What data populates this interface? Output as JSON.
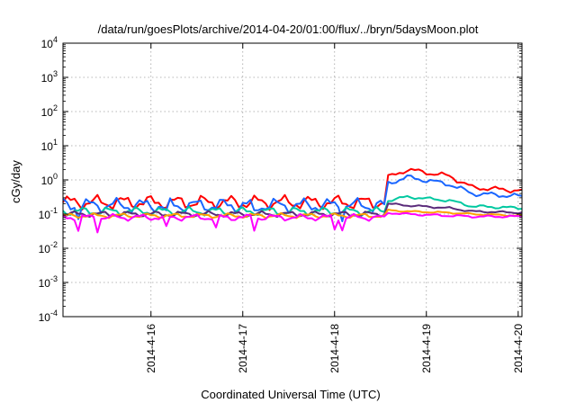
{
  "chart_data": {
    "type": "line",
    "title": "/data/run/goesPlots/archive/2014-04-20/01:00/flux/../bryn/5daysMoon.plot",
    "xlabel": "Coordinated Universal Time (UTC)",
    "ylabel": "cGy/day",
    "y_scale": "log",
    "ylim": [
      0.0001,
      10000
    ],
    "y_ticks": [
      {
        "base": "10",
        "exp": "-4"
      },
      {
        "base": "10",
        "exp": "-3"
      },
      {
        "base": "10",
        "exp": "-2"
      },
      {
        "base": "10",
        "exp": "-1"
      },
      {
        "base": "10",
        "exp": "0"
      },
      {
        "base": "10",
        "exp": "1"
      },
      {
        "base": "10",
        "exp": "2"
      },
      {
        "base": "10",
        "exp": "3"
      },
      {
        "base": "10",
        "exp": "4"
      }
    ],
    "xlim": [
      "2014-04-15T01:00",
      "2014-04-20T01:00"
    ],
    "x_ticks": [
      "2014-4-16",
      "2014-4-17",
      "2014-4-18",
      "2014-4-19",
      "2014-4-20"
    ],
    "grid": true,
    "legend": "none",
    "series": [
      {
        "color": "#ff0000",
        "x": [
          "2014-04-15T01:00",
          "2014-04-18T13:00",
          "2014-04-18T14:00",
          "2014-04-18T19:00",
          "2014-04-19T06:00",
          "2014-04-19T12:00",
          "2014-04-20T01:00"
        ],
        "y": [
          0.22,
          0.22,
          1.2,
          2.0,
          1.3,
          0.6,
          0.48
        ]
      },
      {
        "color": "#1a66ff",
        "x": [
          "2014-04-15T01:00",
          "2014-04-18T13:00",
          "2014-04-18T14:00",
          "2014-04-18T19:00",
          "2014-04-19T06:00",
          "2014-04-19T12:00",
          "2014-04-20T01:00"
        ],
        "y": [
          0.18,
          0.18,
          0.8,
          1.2,
          0.75,
          0.4,
          0.33
        ]
      },
      {
        "color": "#00c8a0",
        "x": [
          "2014-04-15T01:00",
          "2014-04-18T13:00",
          "2014-04-18T14:00",
          "2014-04-18T19:00",
          "2014-04-19T06:00",
          "2014-04-19T12:00",
          "2014-04-20T01:00"
        ],
        "y": [
          0.12,
          0.12,
          0.25,
          0.32,
          0.25,
          0.17,
          0.15
        ]
      },
      {
        "color": "#5a2a7a",
        "x": [
          "2014-04-15T01:00",
          "2014-04-18T13:00",
          "2014-04-18T14:00",
          "2014-04-18T19:00",
          "2014-04-19T06:00",
          "2014-04-19T12:00",
          "2014-04-20T01:00"
        ],
        "y": [
          0.1,
          0.1,
          0.2,
          0.18,
          0.15,
          0.12,
          0.11
        ]
      },
      {
        "color": "#ffa000",
        "x": [
          "2014-04-15T01:00",
          "2014-04-18T13:00",
          "2014-04-18T14:00",
          "2014-04-18T19:00",
          "2014-04-19T06:00",
          "2014-04-19T12:00",
          "2014-04-20T01:00"
        ],
        "y": [
          0.09,
          0.09,
          0.13,
          0.12,
          0.11,
          0.1,
          0.09
        ]
      },
      {
        "color": "#ff00ff",
        "x": [
          "2014-04-15T01:00",
          "2014-04-18T13:00",
          "2014-04-18T14:00",
          "2014-04-18T19:00",
          "2014-04-19T06:00",
          "2014-04-19T12:00",
          "2014-04-20T01:00"
        ],
        "y": [
          0.08,
          0.08,
          0.11,
          0.1,
          0.09,
          0.085,
          0.085
        ]
      }
    ]
  }
}
